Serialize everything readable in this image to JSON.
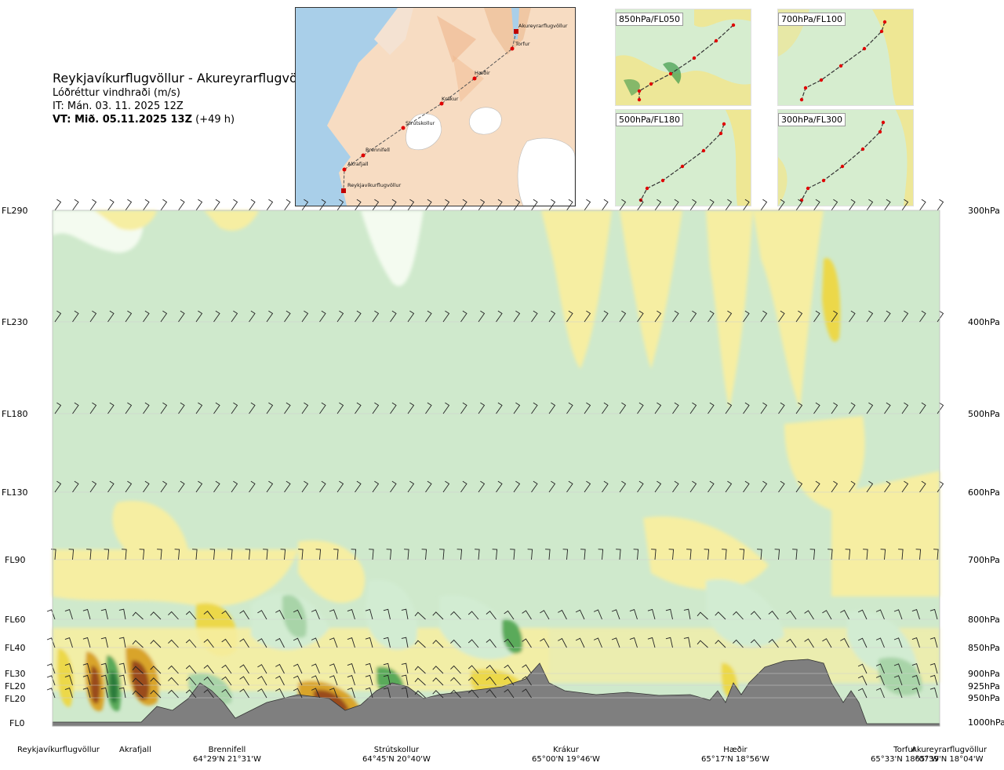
{
  "title": {
    "route": "Reykjavíkurflugvöllur - Akureyrarflugvöllur",
    "variable": "Lóðréttur vindhraði (m/s)",
    "issue_time": "IT: Mán. 03. 11. 2025 12Z",
    "valid_time_bold": "VT: Mið. 05.11.2025 13Z",
    "valid_time_suffix": "(+49 h)"
  },
  "map": {
    "waypoints": [
      {
        "name": "Akureyrarflugvöllur"
      },
      {
        "name": "Torfur"
      },
      {
        "name": "Hæðir"
      },
      {
        "name": "Krákur"
      },
      {
        "name": "Strútskollur"
      },
      {
        "name": "Brennifell"
      },
      {
        "name": "Akrafjall"
      },
      {
        "name": "Reykjavíkurflugvöllur"
      }
    ]
  },
  "panels": [
    {
      "label": "850hPa/FL050"
    },
    {
      "label": "700hPa/FL100"
    },
    {
      "label": "500hPa/FL180"
    },
    {
      "label": "300hPa/FL300"
    }
  ],
  "chart_data": {
    "type": "heatmap",
    "xlabel": "",
    "ylabel": "",
    "y_left_labels": [
      "FL290",
      "FL230",
      "FL180",
      "FL130",
      "FL90",
      "FL60",
      "FL40",
      "FL30",
      "FL20",
      "FL20",
      "FL0"
    ],
    "y_right_labels": [
      "300hPa",
      "400hPa",
      "500hPa",
      "600hPa",
      "700hPa",
      "800hPa",
      "850hPa",
      "900hPa",
      "925hPa",
      "950hPa",
      "1000hPa"
    ],
    "pressure_levels_hpa": [
      300,
      400,
      500,
      600,
      700,
      800,
      850,
      900,
      925,
      950,
      1000
    ],
    "locations": [
      {
        "name": "Reykjavíkurflugvöllur",
        "coord": ""
      },
      {
        "name": "Akrafjall",
        "coord": ""
      },
      {
        "name": "Brennifell",
        "coord": "64°29'N 21°31'W"
      },
      {
        "name": "Strútskollur",
        "coord": "64°45'N 20°40'W"
      },
      {
        "name": "Krákur",
        "coord": "65°00'N 19°46'W"
      },
      {
        "name": "Hæðir",
        "coord": "65°17'N 18°56'W"
      },
      {
        "name": "Torfur",
        "coord": "65°33'N 18°07'W"
      },
      {
        "name": "Akureyrarflugvöllur",
        "coord": "65°39'N 18°04'W"
      }
    ],
    "colors": {
      "updraft_light": "#f6eea2",
      "updraft_mid": "#ecd84a",
      "updraft_strong": "#d9a42a",
      "updraft_max": "#9a4b1a",
      "downdraft_light": "#d2ecd2",
      "downdraft_mid": "#a8d4a8",
      "downdraft_strong": "#5aaa5a",
      "downdraft_max": "#2c7a3a",
      "neutral": "#f4fbf0",
      "terrain": "#7f7f7f"
    }
  }
}
